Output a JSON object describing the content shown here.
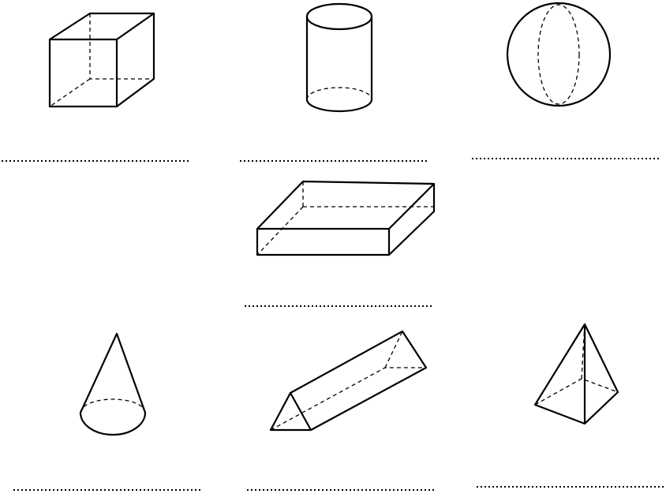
{
  "worksheet": {
    "shapes": [
      {
        "id": "cube",
        "icon": "cube-icon",
        "answer": ""
      },
      {
        "id": "cylinder",
        "icon": "cylinder-icon",
        "answer": ""
      },
      {
        "id": "sphere",
        "icon": "sphere-icon",
        "answer": ""
      },
      {
        "id": "cuboid",
        "icon": "cuboid-icon",
        "answer": ""
      },
      {
        "id": "cone",
        "icon": "cone-icon",
        "answer": ""
      },
      {
        "id": "triangular-prism",
        "icon": "triangular-prism-icon",
        "answer": ""
      },
      {
        "id": "square-pyramid",
        "icon": "square-pyramid-icon",
        "answer": ""
      }
    ]
  }
}
